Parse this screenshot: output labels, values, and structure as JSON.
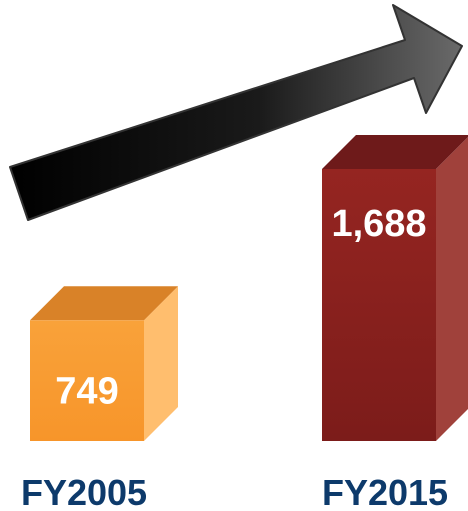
{
  "chart_data": {
    "type": "bar",
    "categories": [
      "FY2005",
      "FY2015"
    ],
    "values": [
      749,
      1688
    ],
    "value_labels": [
      "749",
      "1,688"
    ],
    "title": "",
    "xlabel": "",
    "ylabel": "",
    "ylim": [
      0,
      1688
    ],
    "grid": false,
    "legend": "none",
    "trend_arrow": "increasing",
    "colors": {
      "FY2005": {
        "front": "#f9a23a",
        "top": "#d98228",
        "side": "#ffbe6e"
      },
      "FY2015": {
        "front": "#8a2020",
        "top": "#6e1a1a",
        "side": "#a0413b"
      },
      "arrow": "#000000",
      "category_text": "#0d3a6b",
      "value_text": "#ffffff"
    }
  }
}
